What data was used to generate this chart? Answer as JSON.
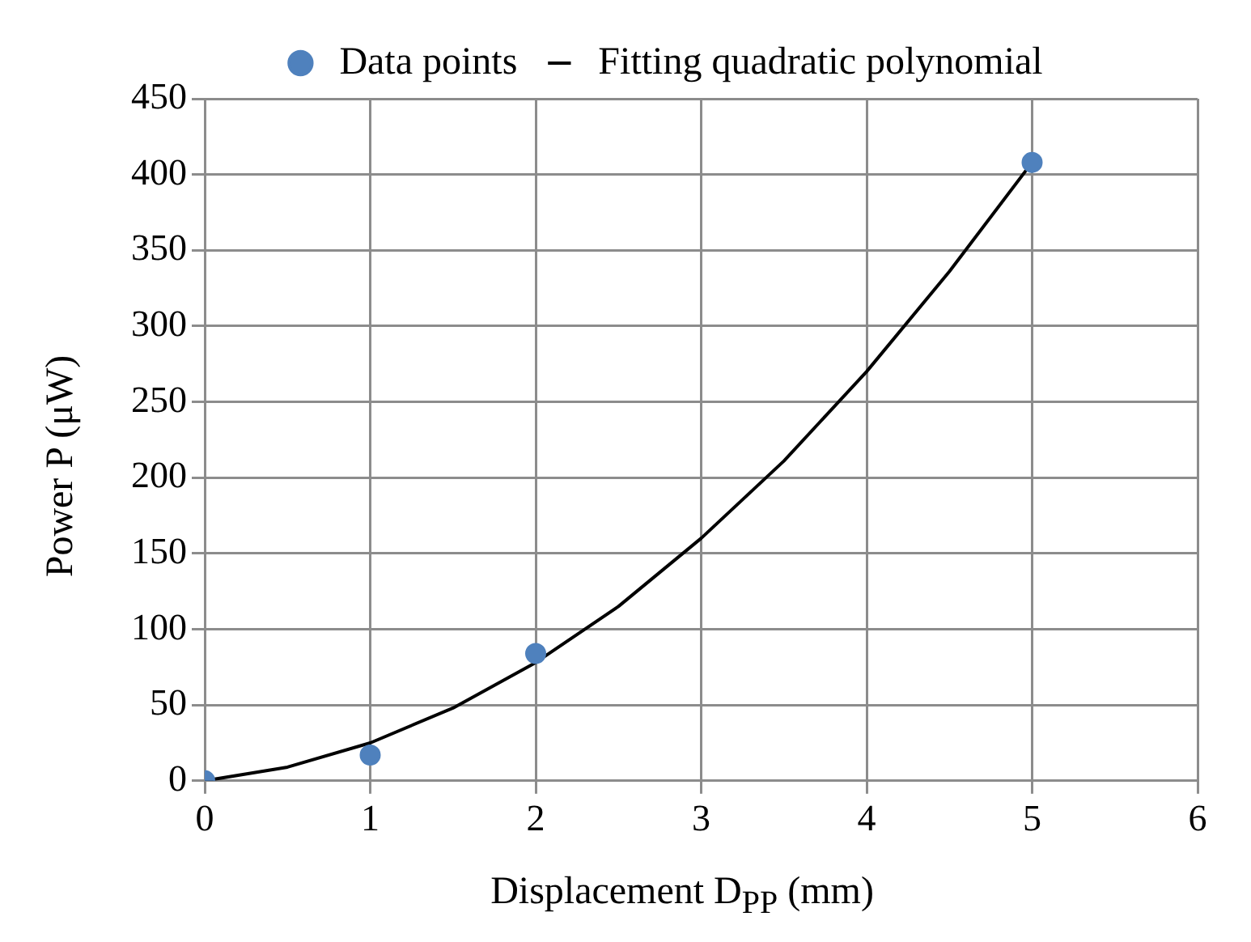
{
  "chart_data": {
    "type": "scatter",
    "xlabel": "Displacement D$_{PP}$ (mm)",
    "ylabel": "Power P (μW)",
    "xlim": [
      0,
      6
    ],
    "xticks": [
      0,
      1,
      2,
      3,
      4,
      5,
      6
    ],
    "ylim": [
      0,
      450
    ],
    "yticks": [
      0,
      50,
      100,
      150,
      200,
      250,
      300,
      350,
      400,
      450
    ],
    "grid": true,
    "legend": "top",
    "series": [
      {
        "name": "Data points",
        "type": "scatter",
        "color": "#4f81bd",
        "marker": "circle",
        "x": [
          0,
          1,
          2,
          5
        ],
        "values": [
          0,
          17,
          84,
          408
        ]
      },
      {
        "name": "Fitting quadratic polynomial",
        "type": "line",
        "color": "#000000",
        "marker": "none",
        "line_style": "solid",
        "x": [
          0,
          0.5,
          1,
          1.5,
          2,
          2.5,
          3,
          3.5,
          4,
          4.5,
          5
        ],
        "values": [
          0,
          9,
          25,
          48,
          78,
          115,
          160,
          211,
          270,
          336,
          408
        ]
      }
    ]
  }
}
